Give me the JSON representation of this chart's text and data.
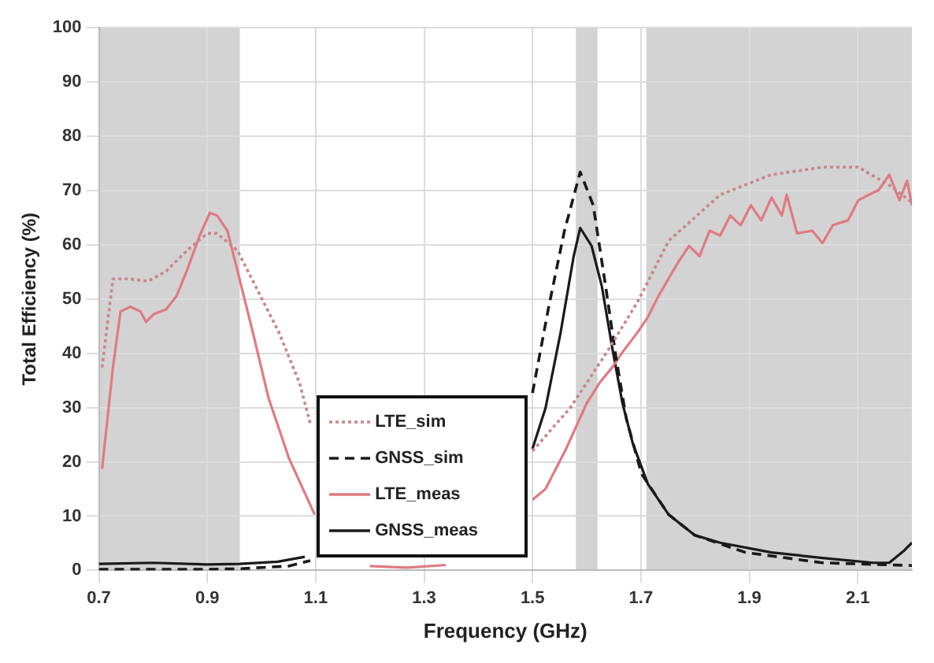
{
  "chart_data": {
    "type": "line",
    "xlabel": "Frequency (GHz)",
    "ylabel": "Total Efficiency (%)",
    "xlim": [
      0.7,
      2.2
    ],
    "xticks": [
      0.7,
      0.9,
      1.1,
      1.3,
      1.5,
      1.7,
      1.9,
      2.1
    ],
    "ylim": [
      0,
      100
    ],
    "yticks": [
      0,
      10,
      20,
      30,
      40,
      50,
      60,
      70,
      80,
      90,
      100
    ],
    "grid": true,
    "legend": "bottom",
    "marker": "none",
    "bands": [
      {
        "axis": "x",
        "from": 0.7,
        "to": 0.96,
        "color": "#d3d3d3"
      },
      {
        "axis": "x",
        "from": 1.58,
        "to": 1.62,
        "color": "#d3d3d3"
      },
      {
        "axis": "x",
        "from": 1.71,
        "to": 2.2,
        "color": "#d3d3d3"
      }
    ],
    "series": [
      {
        "name": "LTE_sim",
        "color": "#c9868b",
        "line_style": "dotted",
        "x": [
          0.706,
          0.726,
          0.758,
          0.791,
          0.824,
          0.862,
          0.9,
          0.918,
          0.956,
          0.994,
          1.032,
          1.07,
          1.09,
          1.3,
          1.5,
          1.57,
          1.637,
          1.694,
          1.751,
          1.846,
          1.94,
          2.035,
          2.101,
          2.158,
          2.2
        ],
        "values": [
          37.4,
          53.7,
          53.7,
          53.3,
          55.1,
          58.9,
          62.1,
          62.1,
          58.9,
          51.4,
          43.9,
          34.6,
          27.1,
          null,
          22,
          30,
          40.2,
          49.5,
          60.7,
          69.2,
          72.9,
          74.3,
          74.3,
          71,
          67.8
        ]
      },
      {
        "name": "GNSS_sim",
        "color": "#1a1a1a",
        "line_style": "dashed",
        "x": [
          0.7,
          0.8,
          0.9,
          0.96,
          1.05,
          1.09,
          1.3,
          1.5,
          1.53,
          1.559,
          1.588,
          1.612,
          1.635,
          1.654,
          1.673,
          1.701,
          1.751,
          1.799,
          1.893,
          2.035,
          2.2
        ],
        "values": [
          0.2,
          0.2,
          0.2,
          0.3,
          0.8,
          1.8,
          null,
          32.7,
          48.6,
          62.6,
          73.4,
          67.3,
          52.3,
          39.3,
          28,
          17.8,
          10.3,
          6.5,
          3.3,
          1.4,
          0.9
        ]
      },
      {
        "name": "LTE_meas",
        "color": "#e07a82",
        "line_style": "solid",
        "x": [
          0.706,
          0.726,
          0.74,
          0.758,
          0.777,
          0.787,
          0.801,
          0.824,
          0.843,
          0.862,
          0.886,
          0.905,
          0.918,
          0.937,
          0.956,
          0.984,
          1.013,
          1.051,
          1.098,
          1.15,
          1.2,
          1.27,
          1.34,
          1.42,
          1.5,
          1.524,
          1.562,
          1.6,
          1.624,
          1.647,
          1.666,
          1.694,
          1.713,
          1.732,
          1.77,
          1.789,
          1.808,
          1.827,
          1.846,
          1.865,
          1.884,
          1.903,
          1.922,
          1.941,
          1.96,
          1.969,
          1.988,
          2.016,
          2.035,
          2.054,
          2.082,
          2.101,
          2.12,
          2.139,
          2.158,
          2.177,
          2.191,
          2.2
        ],
        "values": [
          18.7,
          37.4,
          47.7,
          48.6,
          47.7,
          45.8,
          47.2,
          48.1,
          50.5,
          55.1,
          61.7,
          65.9,
          65.4,
          62.6,
          55.1,
          43.9,
          31.8,
          20.6,
          10.3,
          null,
          0.8,
          0.5,
          1,
          null,
          13,
          15,
          22.4,
          30.8,
          34.6,
          37.4,
          40.2,
          43.9,
          46.7,
          50.5,
          57,
          59.8,
          57.9,
          62.6,
          61.7,
          65.4,
          63.6,
          67.3,
          64.5,
          68.7,
          65.4,
          69.2,
          62.1,
          62.6,
          60.3,
          63.6,
          64.5,
          68.2,
          69.2,
          70.1,
          72.9,
          68.2,
          71.8,
          67.3
        ]
      },
      {
        "name": "GNSS_meas",
        "color": "#1a1a1a",
        "line_style": "solid",
        "x": [
          0.7,
          0.8,
          0.9,
          0.96,
          1.03,
          1.08,
          1.3,
          1.5,
          1.524,
          1.552,
          1.576,
          1.588,
          1.609,
          1.628,
          1.647,
          1.666,
          1.685,
          1.713,
          1.751,
          1.799,
          1.846,
          1.941,
          2.035,
          2.129,
          2.158,
          2.186,
          2.2
        ],
        "values": [
          1.2,
          1.4,
          1.1,
          1.2,
          1.6,
          2.5,
          null,
          22.4,
          29.9,
          43.9,
          57.9,
          63.1,
          59.8,
          52.3,
          41.1,
          30.8,
          23.4,
          15.9,
          10.3,
          6.5,
          5.1,
          3.3,
          2.3,
          1.4,
          1.4,
          3.7,
          5.1
        ]
      }
    ]
  }
}
